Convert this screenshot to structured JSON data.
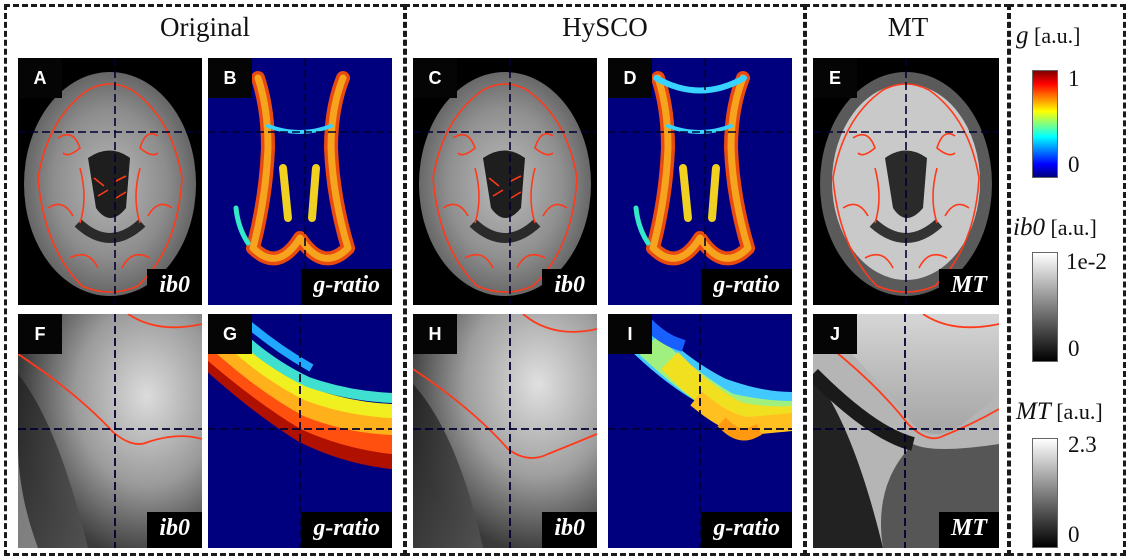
{
  "columns": [
    {
      "title": "Original"
    },
    {
      "title": "HySCO"
    },
    {
      "title": "MT"
    }
  ],
  "panels": {
    "A": {
      "letter": "A",
      "label": "ib0"
    },
    "B": {
      "letter": "B",
      "label": "g-ratio"
    },
    "C": {
      "letter": "C",
      "label": "ib0"
    },
    "D": {
      "letter": "D",
      "label": "g-ratio"
    },
    "E": {
      "letter": "E",
      "label": "MT"
    },
    "F": {
      "letter": "F",
      "label": "ib0"
    },
    "G": {
      "letter": "G",
      "label": "g-ratio"
    },
    "H": {
      "letter": "H",
      "label": "ib0"
    },
    "I": {
      "letter": "I",
      "label": "g-ratio"
    },
    "J": {
      "letter": "J",
      "label": "MT"
    }
  },
  "colorbars": [
    {
      "symbol": "g",
      "unit": "[a.u.]",
      "max": "1",
      "min": "0",
      "colormap": "jet"
    },
    {
      "symbol": "ib0",
      "unit": "[a.u.]",
      "max": "1e-2",
      "min": "0",
      "colormap": "gray"
    },
    {
      "symbol": "MT",
      "unit": "[a.u.]",
      "max": "2.3",
      "min": "0",
      "colormap": "gray"
    }
  ],
  "colors": {
    "contour": "#ff3a1a",
    "jet_background": "#00007f",
    "crosshair": "#000033"
  }
}
